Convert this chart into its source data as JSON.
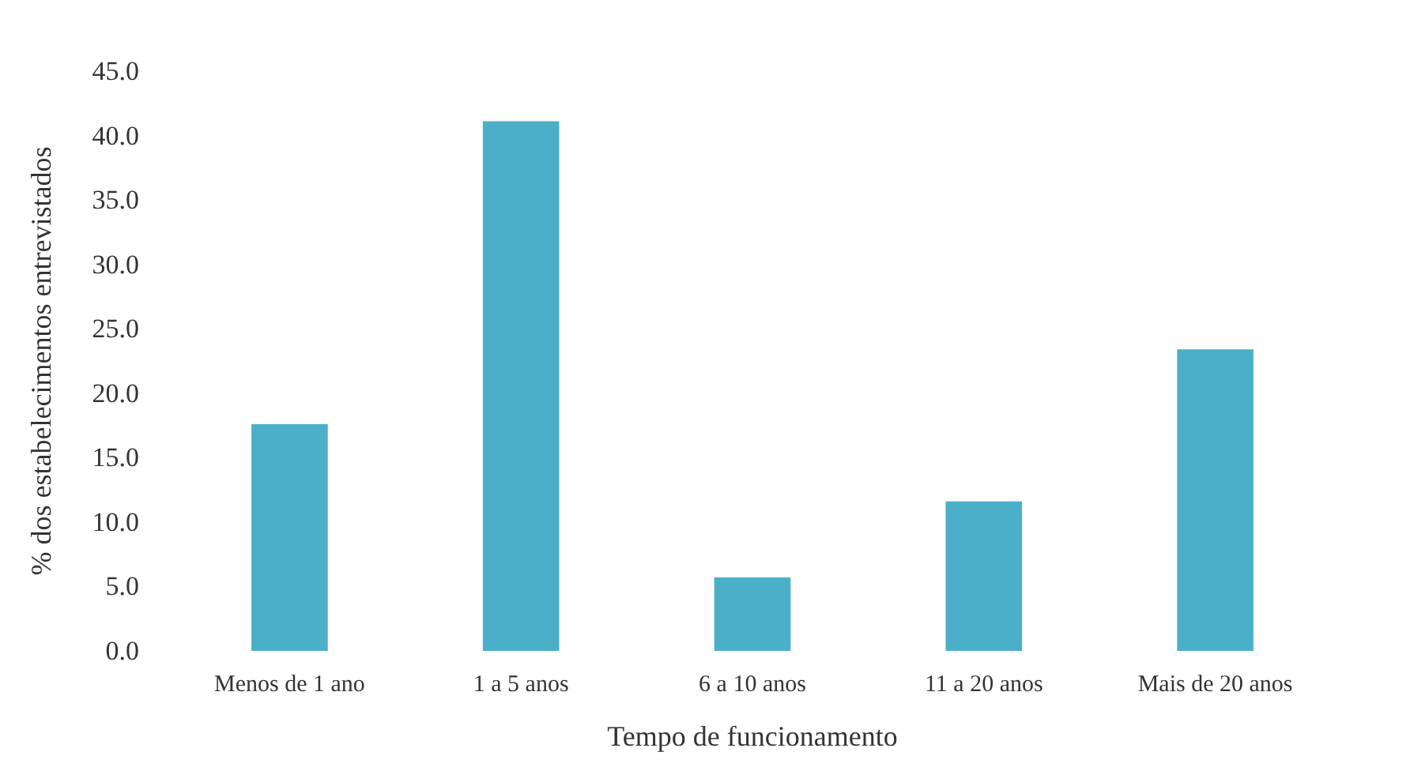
{
  "chart_data": {
    "type": "bar",
    "xlabel": "Tempo de funcionamento",
    "ylabel": "% dos estabelecimentos entrevistados",
    "categories": [
      "Menos de 1 ano",
      "1 a 5 anos",
      "6 a 10 anos",
      "11 a 20 anos",
      "Mais de 20 anos"
    ],
    "values": [
      17.6,
      41.1,
      5.7,
      11.6,
      23.4
    ],
    "color": "#4bafc9",
    "ylim": [
      0,
      45
    ],
    "yticks": [
      {
        "value": 0,
        "label": "0.0"
      },
      {
        "value": 5,
        "label": "5.0"
      },
      {
        "value": 10,
        "label": "10.0"
      },
      {
        "value": 15,
        "label": "15.0"
      },
      {
        "value": 20,
        "label": "20.0"
      },
      {
        "value": 25,
        "label": "25.0"
      },
      {
        "value": 30,
        "label": "30.0"
      },
      {
        "value": 35,
        "label": "35.0"
      },
      {
        "value": 40,
        "label": "40.0"
      },
      {
        "value": 45,
        "label": "45.0"
      }
    ],
    "grid": false
  }
}
